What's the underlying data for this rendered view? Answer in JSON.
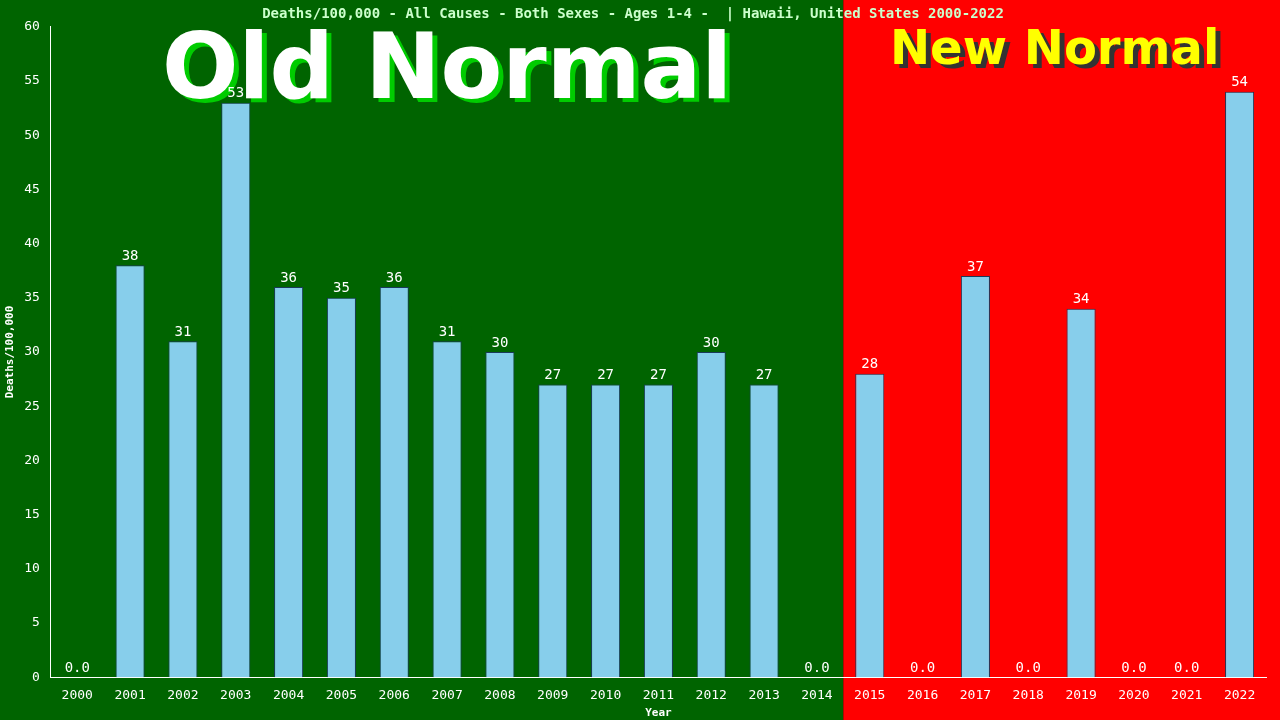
{
  "chart_data": {
    "type": "bar",
    "title": "Deaths/100,000 - All Causes - Both Sexes - Ages 1-4 -  | Hawaii, United States 2000-2022",
    "xlabel": "Year",
    "ylabel": "Deaths/100,000",
    "categories": [
      "2000",
      "2001",
      "2002",
      "2003",
      "2004",
      "2005",
      "2006",
      "2007",
      "2008",
      "2009",
      "2010",
      "2011",
      "2012",
      "2013",
      "2014",
      "2015",
      "2016",
      "2017",
      "2018",
      "2019",
      "2020",
      "2021",
      "2022"
    ],
    "values": [
      0,
      38,
      31,
      53,
      36,
      35,
      36,
      31,
      30,
      27,
      27,
      27,
      30,
      27,
      0,
      28,
      0,
      37,
      0,
      34,
      0,
      0,
      54
    ],
    "value_labels": [
      "0.0",
      "38",
      "31",
      "53",
      "36",
      "35",
      "36",
      "31",
      "30",
      "27",
      "27",
      "27",
      "30",
      "27",
      "0.0",
      "28",
      "0.0",
      "37",
      "0.0",
      "34",
      "0.0",
      "0.0",
      "54"
    ],
    "color": "#87ceeb",
    "ylim": [
      0,
      60
    ],
    "yticks": [
      0,
      5,
      10,
      15,
      20,
      25,
      30,
      35,
      40,
      45,
      50,
      55,
      60
    ],
    "grid": false,
    "legend": false,
    "bands": [
      {
        "axis": "x",
        "from": "2000",
        "to": "2014",
        "label": "Old Normal",
        "color": "#006400"
      },
      {
        "axis": "x",
        "from": "2015",
        "to": "2022",
        "label": "New Normal",
        "color": "#ff0000"
      }
    ]
  }
}
